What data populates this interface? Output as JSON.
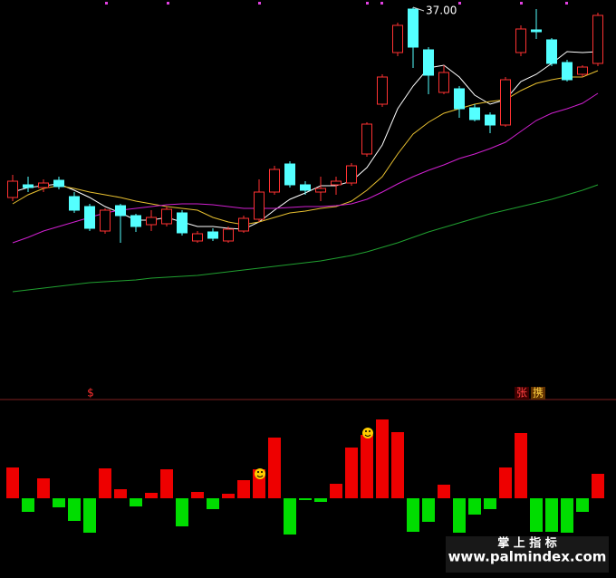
{
  "chart_data": [
    {
      "type": "candlestick",
      "annotation": "37.00",
      "ylim": [
        15.4,
        37.4
      ],
      "up_color": "#ff3232",
      "down_color": "#54ffff",
      "open": [
        26.5,
        27.2,
        27.05,
        27.45,
        26.55,
        26.0,
        24.65,
        26.05,
        25.5,
        25.0,
        25.05,
        25.65,
        24.1,
        24.6,
        24.1,
        24.65,
        25.3,
        26.8,
        28.35,
        27.2,
        26.8,
        27.2,
        27.3,
        28.9,
        31.65,
        34.5,
        36.9,
        34.65,
        32.3,
        32.5,
        31.45,
        31.05,
        30.5,
        34.5,
        35.75,
        35.2,
        33.95,
        33.3,
        33.9
      ],
      "high": [
        27.75,
        27.65,
        27.5,
        27.65,
        26.8,
        26.15,
        25.9,
        26.15,
        25.6,
        25.8,
        26.0,
        25.8,
        24.65,
        24.8,
        24.9,
        25.5,
        27.5,
        28.25,
        28.5,
        27.4,
        27.65,
        27.65,
        28.4,
        30.65,
        33.3,
        36.15,
        37.0,
        34.8,
        33.8,
        32.65,
        31.65,
        31.2,
        33.15,
        36.0,
        36.9,
        35.3,
        34.1,
        33.8,
        36.7
      ],
      "low": [
        26.3,
        26.8,
        26.8,
        26.95,
        25.65,
        24.65,
        24.5,
        24.0,
        24.6,
        24.65,
        24.9,
        24.4,
        24.0,
        24.1,
        24.0,
        24.55,
        25.15,
        26.65,
        27.05,
        26.65,
        26.3,
        26.65,
        27.15,
        28.75,
        31.5,
        34.3,
        33.65,
        32.2,
        32.2,
        30.9,
        30.7,
        30.05,
        30.4,
        34.3,
        35.25,
        33.75,
        32.9,
        33.15,
        33.75
      ],
      "close": [
        27.4,
        27.05,
        27.3,
        27.1,
        25.8,
        24.8,
        25.8,
        25.5,
        24.9,
        25.4,
        25.85,
        24.55,
        24.5,
        24.25,
        24.75,
        25.35,
        26.8,
        28.05,
        27.2,
        26.9,
        27.0,
        27.4,
        28.25,
        30.55,
        33.15,
        36.0,
        34.8,
        33.25,
        33.4,
        31.4,
        30.8,
        30.5,
        33.0,
        35.8,
        35.65,
        33.9,
        33.0,
        33.7,
        36.55
      ],
      "lines": [
        {
          "color": "#ffffff",
          "values": [
            26.8,
            27.05,
            27.15,
            27.25,
            26.9,
            26.5,
            26.0,
            25.65,
            25.25,
            25.25,
            25.4,
            25.15,
            24.9,
            24.9,
            24.8,
            24.75,
            25.15,
            25.8,
            26.4,
            26.75,
            27.15,
            27.15,
            27.4,
            28.15,
            29.4,
            31.4,
            32.65,
            33.65,
            33.8,
            33.15,
            32.15,
            31.65,
            31.9,
            32.9,
            33.3,
            33.9,
            34.55,
            34.5,
            34.55
          ]
        },
        {
          "color": "#e8c030",
          "values": [
            26.15,
            26.65,
            27.0,
            27.15,
            27.0,
            26.8,
            26.65,
            26.5,
            26.3,
            26.15,
            26.0,
            25.9,
            25.8,
            25.4,
            25.15,
            25.0,
            25.15,
            25.4,
            25.65,
            25.75,
            25.9,
            26.0,
            26.3,
            26.9,
            27.65,
            28.9,
            30.0,
            30.65,
            31.15,
            31.4,
            31.65,
            31.8,
            31.9,
            32.4,
            32.8,
            33.0,
            33.15,
            33.15,
            33.5
          ]
        },
        {
          "color": "#d020d0",
          "values": [
            24.0,
            24.3,
            24.65,
            24.9,
            25.15,
            25.4,
            25.65,
            25.8,
            25.9,
            26.0,
            26.1,
            26.15,
            26.15,
            26.1,
            26.0,
            25.9,
            25.9,
            25.9,
            25.95,
            26.0,
            26.0,
            26.05,
            26.15,
            26.4,
            26.8,
            27.25,
            27.65,
            28.0,
            28.3,
            28.65,
            28.9,
            29.2,
            29.55,
            30.15,
            30.75,
            31.15,
            31.4,
            31.7,
            32.25
          ]
        },
        {
          "color": "#20a030",
          "values": [
            21.3,
            21.4,
            21.5,
            21.6,
            21.7,
            21.8,
            21.85,
            21.9,
            21.95,
            22.05,
            22.1,
            22.15,
            22.2,
            22.3,
            22.4,
            22.5,
            22.6,
            22.7,
            22.8,
            22.9,
            23.0,
            23.15,
            23.3,
            23.5,
            23.75,
            24.0,
            24.3,
            24.6,
            24.85,
            25.1,
            25.35,
            25.6,
            25.8,
            26.0,
            26.2,
            26.4,
            26.65,
            26.9,
            27.2
          ]
        }
      ]
    },
    {
      "type": "bar",
      "ylim": [
        -88,
        110
      ],
      "pos_color": "#ee0000",
      "neg_color": "#00dd00",
      "values": [
        34,
        -15,
        22,
        -10,
        -25,
        -38,
        33,
        10,
        -9,
        6,
        32,
        -31,
        7,
        -12,
        5,
        20,
        32,
        67,
        -40,
        -2,
        -4,
        16,
        56,
        70,
        87,
        73,
        -37,
        -26,
        15,
        -38,
        -18,
        -12,
        34,
        72,
        -37,
        -37,
        -38,
        -15,
        27
      ]
    }
  ],
  "signals": {
    "left": "$",
    "right_1": "张",
    "right_2": "携"
  },
  "watermark": {
    "name": "掌 上 指 标",
    "url": "www.palmindex.com"
  }
}
